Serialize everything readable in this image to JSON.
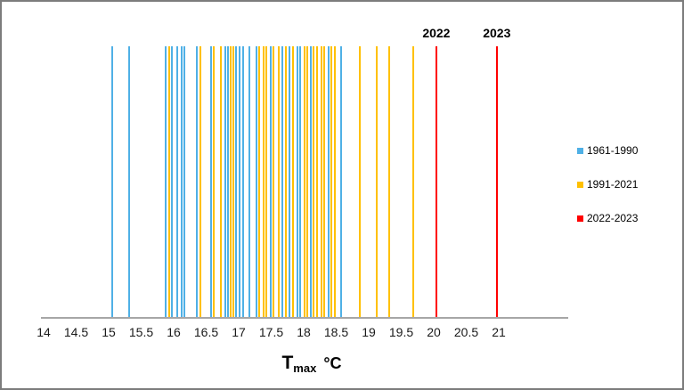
{
  "chart_data": {
    "type": "scatter",
    "subtype": "rug-vertical-lines",
    "title": "",
    "xlabel": {
      "base": "T",
      "subscript": "max",
      "unit": "°C"
    },
    "xlim": [
      14,
      21
    ],
    "xticks": [
      "14",
      "14.5",
      "15",
      "15.5",
      "16",
      "16.5",
      "17",
      "17.5",
      "18",
      "18.5",
      "19",
      "19.5",
      "20",
      "20.5",
      "21"
    ],
    "grid": false,
    "legend_position": "right",
    "series": [
      {
        "name": "1961-1990",
        "color": "#4FB0E6",
        "values": [
          15.05,
          15.31,
          15.87,
          15.97,
          16.06,
          16.12,
          16.17,
          16.36,
          16.58,
          16.79,
          16.84,
          16.96,
          17.02,
          17.07,
          17.17,
          17.27,
          17.49,
          17.67,
          17.78,
          17.9,
          17.95,
          18.11,
          18.38,
          18.57
        ]
      },
      {
        "name": "1991-2021",
        "color": "#FFC000",
        "values": [
          15.93,
          16.41,
          16.62,
          16.73,
          16.88,
          16.92,
          17.32,
          17.38,
          17.43,
          17.54,
          17.61,
          17.73,
          17.84,
          18.01,
          18.06,
          18.15,
          18.21,
          18.27,
          18.32,
          18.43,
          18.48,
          18.86,
          19.13,
          19.31,
          19.69
        ]
      },
      {
        "name": "2022-2023",
        "color": "#FF0000",
        "values": [
          20.04,
          20.97
        ]
      }
    ],
    "annotations": [
      {
        "text": "2022",
        "x": 20.04
      },
      {
        "text": "2023",
        "x": 20.97
      }
    ]
  },
  "colors": {
    "axis": "#A6A6A6",
    "border": "#7C7C7C",
    "background": "#FFFFFF",
    "text": "#1A1A1A"
  }
}
